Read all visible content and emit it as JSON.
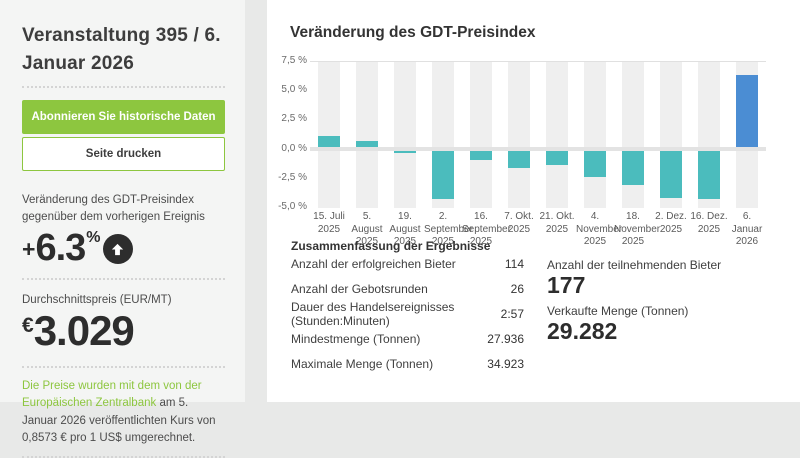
{
  "sidebar": {
    "title": "Veranstaltung 395 / 6. Januar 2026",
    "subscribe_button": "Abonnieren Sie historische Daten",
    "print_button": "Seite drucken",
    "change_label": "Veränderung des GDT-Preisindex gegenüber dem vorherigen Ereignis",
    "change_sign": "+",
    "change_value": "6.3",
    "change_unit": "%",
    "avg_price_label": "Durchschnittspreis (EUR/MT)",
    "avg_price_currency": "€",
    "avg_price_value": "3.029",
    "exchange_note_link": "Die Preise wurden mit dem von der Europäischen Zentralbank",
    "exchange_note_rest": " am 5. Januar 2026 veröffentlichten Kurs von 0,8573 € pro 1 US$ umgerechnet."
  },
  "main": {
    "chart_title": "Veränderung des GDT-Preisindex",
    "summary": {
      "heading": "Zusammenfassung der Ergebnisse",
      "rows": [
        {
          "label": "Anzahl der erfolgreichen Bieter",
          "value": "114"
        },
        {
          "label": "Anzahl der Gebotsrunden",
          "value": "26"
        },
        {
          "label": "Dauer des Handelsereignisses (Stunden:Minuten)",
          "value": "2:57"
        },
        {
          "label": "Mindestmenge (Tonnen)",
          "value": "27.936"
        },
        {
          "label": "Maximale Menge (Tonnen)",
          "value": "34.923"
        }
      ],
      "highlights": [
        {
          "label": "Anzahl der teilnehmenden Bieter",
          "value": "177"
        },
        {
          "label": "Verkaufte Menge (Tonnen)",
          "value": "29.282"
        }
      ]
    }
  },
  "chart_data": {
    "type": "bar",
    "title": "Veränderung des GDT-Preisindex",
    "categories": [
      "15. Juli 2025",
      "5. August 2025",
      "19. August 2025",
      "2. September 2025",
      "16. September 2025",
      "7. Okt. 2025",
      "21. Okt. 2025",
      "4. November 2025",
      "18. November 2025",
      "2. Dez. 2025",
      "16. Dez. 2025",
      "6. Januar 2026"
    ],
    "values": [
      1.1,
      0.7,
      -0.3,
      -4.3,
      -0.9,
      -1.6,
      -1.4,
      -2.4,
      -3.1,
      -4.2,
      -4.3,
      6.3
    ],
    "y_ticks": [
      "7,5 %",
      "5,0 %",
      "2,5 %",
      "0,0 %",
      "-2,5 %",
      "-5,0 %"
    ],
    "ylim": [
      -5.0,
      7.5
    ],
    "ylabel": "",
    "xlabel": "",
    "grid": "zero-band-only",
    "legend": "none",
    "bar_color": "#4bbcbd",
    "highlight_color": "#4b8dd3",
    "highlight_index": 11,
    "stripe_color": "#efefef"
  },
  "colors": {
    "accent_green": "#8dc63f",
    "bar_teal": "#4bbcbd",
    "bar_blue": "#4b8dd3",
    "dark_text": "#2d2d2d"
  }
}
